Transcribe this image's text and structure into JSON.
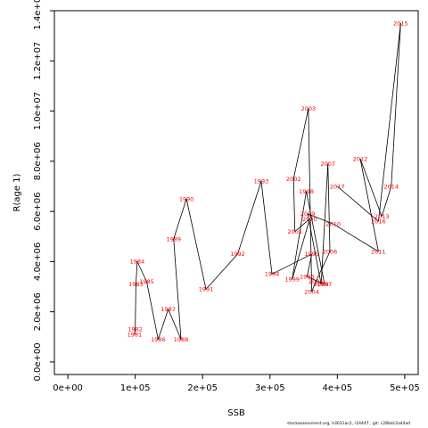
{
  "chart_data": {
    "type": "line",
    "xlabel": "SSB",
    "ylabel": "R(age 1)",
    "xlim": [
      -20000,
      520000
    ],
    "ylim": [
      -500000,
      14000000
    ],
    "x_ticks": [
      0,
      100000,
      200000,
      300000,
      400000,
      500000
    ],
    "x_tick_labels": [
      "0e+00",
      "1e+05",
      "2e+05",
      "3e+05",
      "4e+05",
      "5e+05"
    ],
    "y_ticks": [
      0,
      2000000,
      4000000,
      6000000,
      8000000,
      10000000,
      12000000,
      14000000
    ],
    "y_tick_labels": [
      "0.0e+00",
      "2.0e+06",
      "4.0e+06",
      "6.0e+06",
      "8.0e+06",
      "1.0e+07",
      "1.2e+07",
      "1.4e+07"
    ],
    "series": [
      {
        "points": [
          {
            "label": "1981",
            "x": 99000,
            "y": 1100000
          },
          {
            "label": "1982",
            "x": 100000,
            "y": 1300000
          },
          {
            "label": "1983",
            "x": 101000,
            "y": 3100000
          },
          {
            "label": "1984",
            "x": 103000,
            "y": 4000000
          },
          {
            "label": "1985",
            "x": 117000,
            "y": 3200000
          },
          {
            "label": "1986",
            "x": 134000,
            "y": 900000
          },
          {
            "label": "1987",
            "x": 149000,
            "y": 2100000
          },
          {
            "label": "1988",
            "x": 168000,
            "y": 900000
          },
          {
            "label": "1989",
            "x": 157000,
            "y": 4900000
          },
          {
            "label": "1990",
            "x": 176000,
            "y": 6500000
          },
          {
            "label": "1991",
            "x": 205000,
            "y": 2900000
          },
          {
            "label": "1992",
            "x": 252000,
            "y": 4300000
          },
          {
            "label": "1993",
            "x": 287000,
            "y": 7200000
          },
          {
            "label": "1994",
            "x": 303000,
            "y": 3500000
          },
          {
            "label": "1995",
            "x": 362000,
            "y": 4300000
          },
          {
            "label": "1996",
            "x": 355000,
            "y": 3400000
          },
          {
            "label": "1997",
            "x": 381000,
            "y": 3100000
          },
          {
            "label": "1998",
            "x": 354000,
            "y": 6800000
          },
          {
            "label": "1999",
            "x": 333000,
            "y": 3300000
          },
          {
            "label": "2000",
            "x": 359000,
            "y": 5700000
          },
          {
            "label": "2001",
            "x": 337000,
            "y": 5200000
          },
          {
            "label": "2002",
            "x": 335000,
            "y": 7300000
          },
          {
            "label": "2003",
            "x": 357000,
            "y": 10100000
          },
          {
            "label": "2004",
            "x": 362000,
            "y": 2800000
          },
          {
            "label": "2005",
            "x": 368000,
            "y": 3200000
          },
          {
            "label": "2006",
            "x": 389000,
            "y": 4400000
          },
          {
            "label": "2007",
            "x": 386000,
            "y": 7900000
          },
          {
            "label": "2008",
            "x": 376000,
            "y": 3100000
          },
          {
            "label": "2009",
            "x": 356000,
            "y": 5900000
          },
          {
            "label": "2010",
            "x": 394000,
            "y": 5500000
          },
          {
            "label": "2011",
            "x": 461000,
            "y": 4400000
          },
          {
            "label": "2012",
            "x": 434000,
            "y": 8100000
          },
          {
            "label": "2013",
            "x": 466000,
            "y": 5800000
          },
          {
            "label": "2014",
            "x": 480000,
            "y": 7000000
          },
          {
            "label": "2015",
            "x": 494000,
            "y": 13500000
          },
          {
            "label": "2016",
            "x": 461000,
            "y": 5600000
          },
          {
            "label": "2017",
            "x": 400000,
            "y": 7000000
          }
        ]
      }
    ],
    "footer": "stockassessment.org, h3031ac2, r14447 , git: c28bdc2a44ad"
  }
}
